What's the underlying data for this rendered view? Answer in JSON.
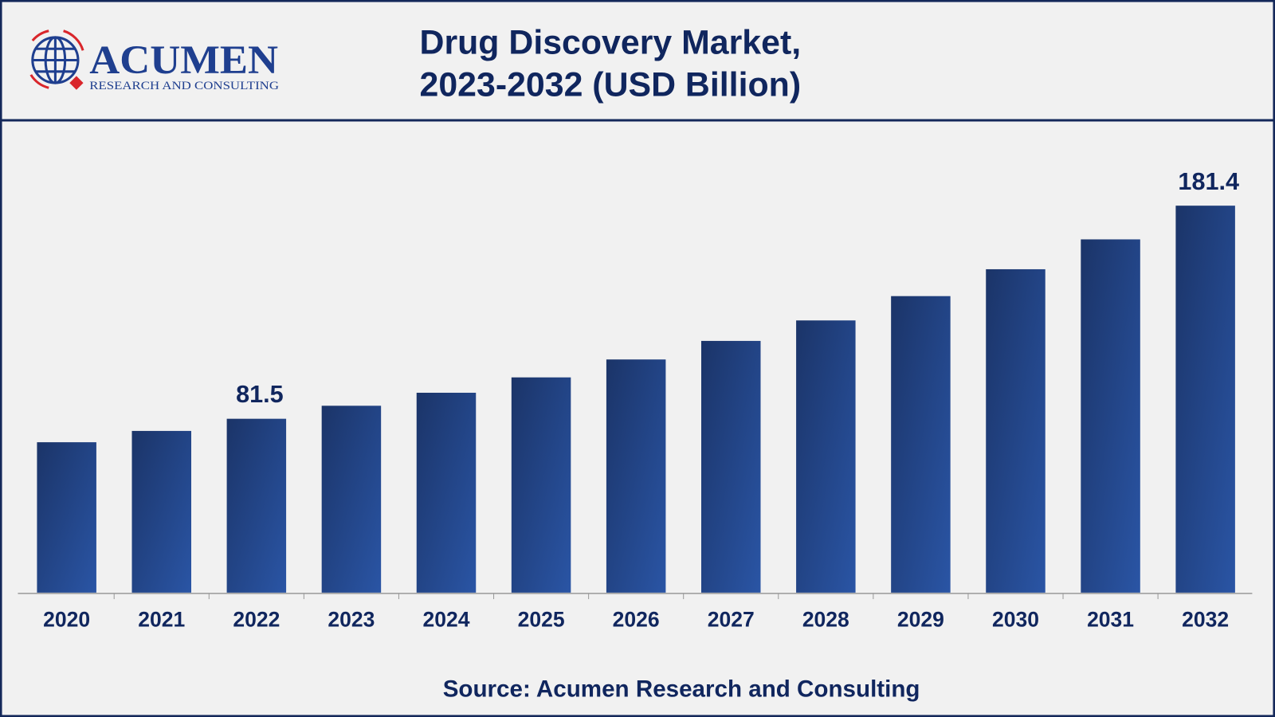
{
  "logo": {
    "name": "ACUMEN",
    "tagline": "RESEARCH AND CONSULTING"
  },
  "colors": {
    "bar_dark": "#1b3468",
    "bar_light": "#2a55a5",
    "text": "#10265e",
    "border": "#14285a",
    "logo_red": "#d9262b",
    "background": "#f1f1f1"
  },
  "chart_data": {
    "type": "bar",
    "title_line1": "Drug Discovery Market,",
    "title_line2": "2023-2032 (USD Billion)",
    "categories": [
      "2020",
      "2021",
      "2022",
      "2023",
      "2024",
      "2025",
      "2026",
      "2027",
      "2028",
      "2029",
      "2030",
      "2031",
      "2032"
    ],
    "values": [
      70.5,
      75.8,
      81.5,
      87.6,
      93.7,
      100.9,
      109.3,
      118.0,
      127.6,
      139.0,
      151.6,
      165.6,
      181.4
    ],
    "data_labels": {
      "2022": "81.5",
      "2032": "181.4"
    },
    "ylim": [
      0,
      181.4
    ],
    "grid": false,
    "source": "Source: Acumen Research and Consulting"
  }
}
